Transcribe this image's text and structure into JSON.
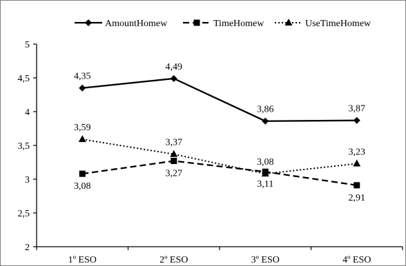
{
  "chart_data": {
    "type": "line",
    "categories": [
      "1º ESO",
      "2º ESO",
      "3º ESO",
      "4º ESO"
    ],
    "y_ticks": [
      "2",
      "2,5",
      "3",
      "3,5",
      "4",
      "4,5",
      "5"
    ],
    "ylim": [
      2,
      5
    ],
    "grid": false,
    "legend_position": "top",
    "series": [
      {
        "name": "AmountHomew",
        "values": [
          4.35,
          4.49,
          3.86,
          3.87
        ],
        "labels": [
          "4,35",
          "4,49",
          "3,86",
          "3,87"
        ],
        "line_style": "solid",
        "marker": "diamond",
        "color": "#000000"
      },
      {
        "name": "TimeHomew",
        "values": [
          3.08,
          3.27,
          3.11,
          2.91
        ],
        "labels": [
          "3,08",
          "3,27",
          "3,11",
          "2,91"
        ],
        "line_style": "dashed",
        "marker": "square",
        "color": "#000000"
      },
      {
        "name": "UseTimeHomew",
        "values": [
          3.59,
          3.37,
          3.08,
          3.23
        ],
        "labels": [
          "3,59",
          "3,37",
          "3,08",
          "3,23"
        ],
        "line_style": "dotted",
        "marker": "triangle",
        "color": "#000000"
      }
    ]
  }
}
